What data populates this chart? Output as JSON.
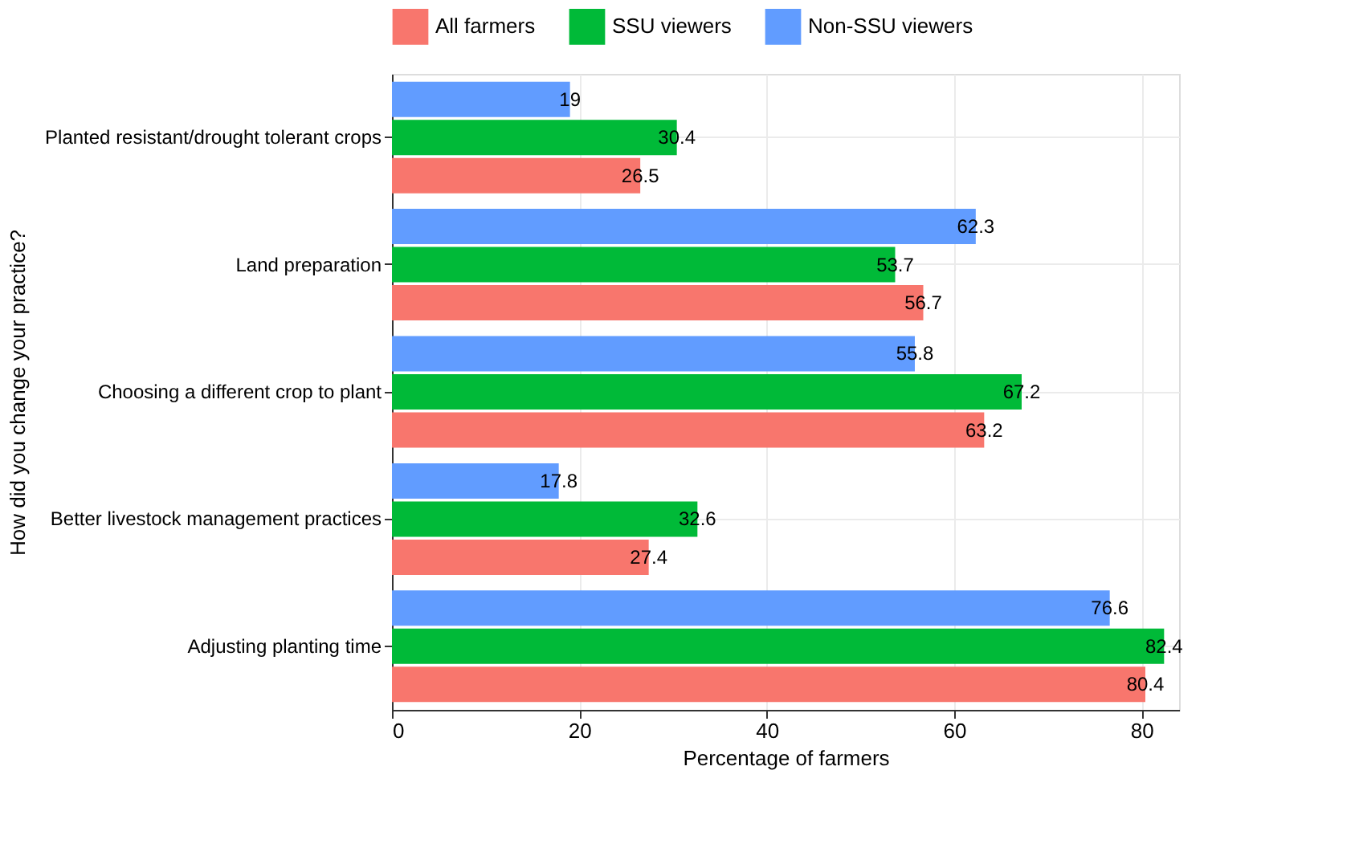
{
  "chart_data": {
    "type": "bar",
    "orientation": "horizontal",
    "xlabel": "Percentage of farmers",
    "ylabel": "How did you change your practice?",
    "categories": [
      "Planted resistant/drought tolerant crops",
      "Land preparation",
      "Choosing a different crop to plant",
      "Better livestock management practices",
      "Adjusting planting time"
    ],
    "series": [
      {
        "name": "All farmers",
        "color": "#f8766d",
        "values": [
          26.5,
          56.7,
          63.2,
          27.4,
          80.4
        ]
      },
      {
        "name": "SSU viewers",
        "color": "#00ba38",
        "values": [
          30.4,
          53.7,
          67.2,
          32.6,
          82.4
        ]
      },
      {
        "name": "Non-SSU viewers",
        "color": "#619cff",
        "values": [
          19,
          62.3,
          55.8,
          17.8,
          76.6
        ]
      }
    ],
    "xlim": [
      0,
      84
    ],
    "xticks": [
      0,
      20,
      40,
      60,
      80
    ],
    "grid": true,
    "legend": "top",
    "data_labels": true
  }
}
